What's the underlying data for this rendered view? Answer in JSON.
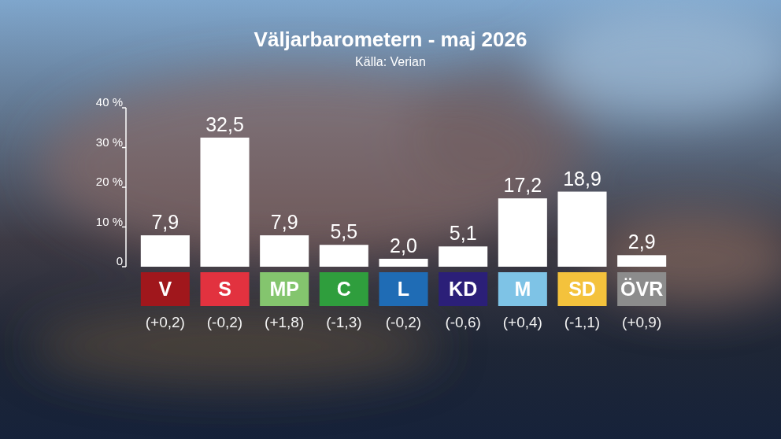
{
  "chart_data": {
    "type": "bar",
    "title": "Väljarbarometern - maj 2026",
    "subtitle": "Källa: Verian",
    "categories": [
      "V",
      "S",
      "MP",
      "C",
      "L",
      "KD",
      "M",
      "SD",
      "ÖVR"
    ],
    "values": [
      7.9,
      32.5,
      7.9,
      5.5,
      2.0,
      5.1,
      17.2,
      18.9,
      2.9
    ],
    "value_labels": [
      "7,9",
      "32,5",
      "7,9",
      "5,5",
      "2,0",
      "5,1",
      "17,2",
      "18,9",
      "2,9"
    ],
    "changes": [
      "(+0,2)",
      "(-0,2)",
      "(+1,8)",
      "(-1,3)",
      "(-0,2)",
      "(-0,6)",
      "(+0,4)",
      "(-1,1)",
      "(+0,9)"
    ],
    "color": "#ffffff",
    "category_colors": [
      "#a0171c",
      "#e2323f",
      "#84c56e",
      "#2f9e3d",
      "#1f6cb5",
      "#2b1f78",
      "#7ec3e6",
      "#f4c23c",
      "#8c8c8c"
    ],
    "ylim": [
      0,
      40
    ],
    "yticks": [
      0,
      {
        "value": 10,
        "label": "10 %"
      },
      {
        "value": 20,
        "label": "20 %"
      },
      {
        "value": 30,
        "label": "30 %"
      },
      {
        "value": 40,
        "label": "40 %"
      }
    ],
    "grid": false,
    "data_labels": true
  }
}
